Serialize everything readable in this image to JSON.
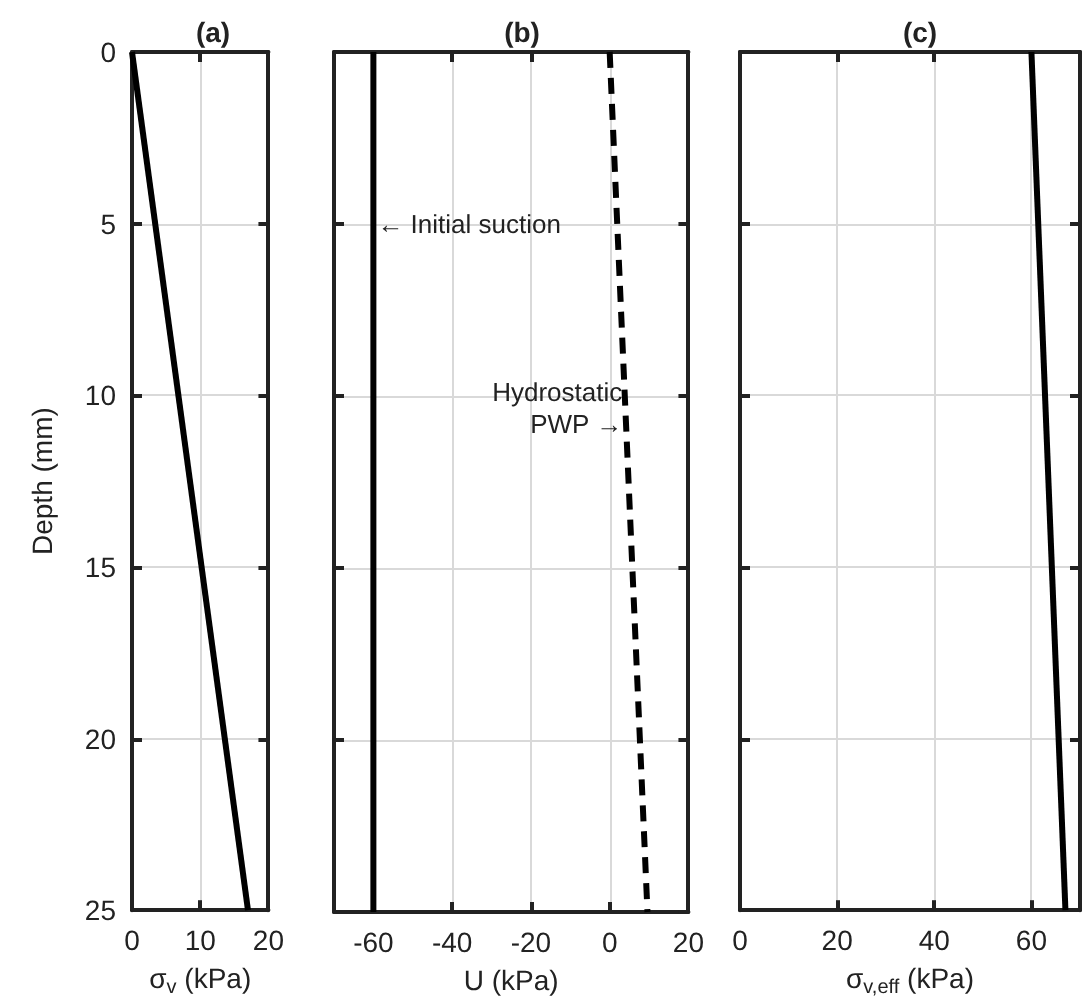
{
  "chart_data": [
    {
      "type": "line",
      "title": "(a)",
      "xlabel": "σ$_{v}$ (kPa)",
      "ylabel": "Depth (mm)",
      "xlim": [
        0,
        20
      ],
      "xticks": [
        0,
        10,
        20
      ],
      "ylim": [
        25,
        0
      ],
      "yticks": [
        0,
        5,
        10,
        15,
        20,
        25
      ],
      "grid": true,
      "line_style": "solid",
      "series": [
        {
          "color": "#000000",
          "x": [
            0,
            17
          ],
          "values": [
            0,
            25
          ]
        }
      ]
    },
    {
      "type": "line",
      "title": "(b)",
      "xlabel": "U (kPa)",
      "xlim": [
        -70,
        20
      ],
      "xticks": [
        -60,
        -40,
        -20,
        0,
        20
      ],
      "ylim": [
        25,
        0
      ],
      "yticks": [
        0,
        5,
        10,
        15,
        20,
        25
      ],
      "grid": true,
      "tick_labels": "x",
      "series": [
        {
          "color": "#000000",
          "x": [
            -60,
            -60
          ],
          "values": [
            0,
            25
          ],
          "line_style": "solid"
        },
        {
          "color": "#000000",
          "x": [
            0,
            9.6
          ],
          "values": [
            0,
            25
          ],
          "line_style": "dashed"
        }
      ],
      "annotations": [
        {
          "text": "← Initial suction",
          "x": -60,
          "y": 5
        },
        {
          "text": "Hydrostatic\nPWP →",
          "x": 4.2,
          "y": 10.8
        }
      ]
    },
    {
      "type": "line",
      "title": "(c)",
      "xlabel": "σ$_{v,eff}$ (kPa)",
      "xlim": [
        0,
        70
      ],
      "xticks": [
        0,
        20,
        40,
        60
      ],
      "ylim": [
        25,
        0
      ],
      "yticks": [
        0,
        5,
        10,
        15,
        20,
        25
      ],
      "grid": true,
      "tick_labels": "x",
      "line_style": "solid",
      "series": [
        {
          "color": "#000000",
          "x": [
            60,
            67
          ],
          "values": [
            0,
            25
          ]
        }
      ]
    }
  ]
}
